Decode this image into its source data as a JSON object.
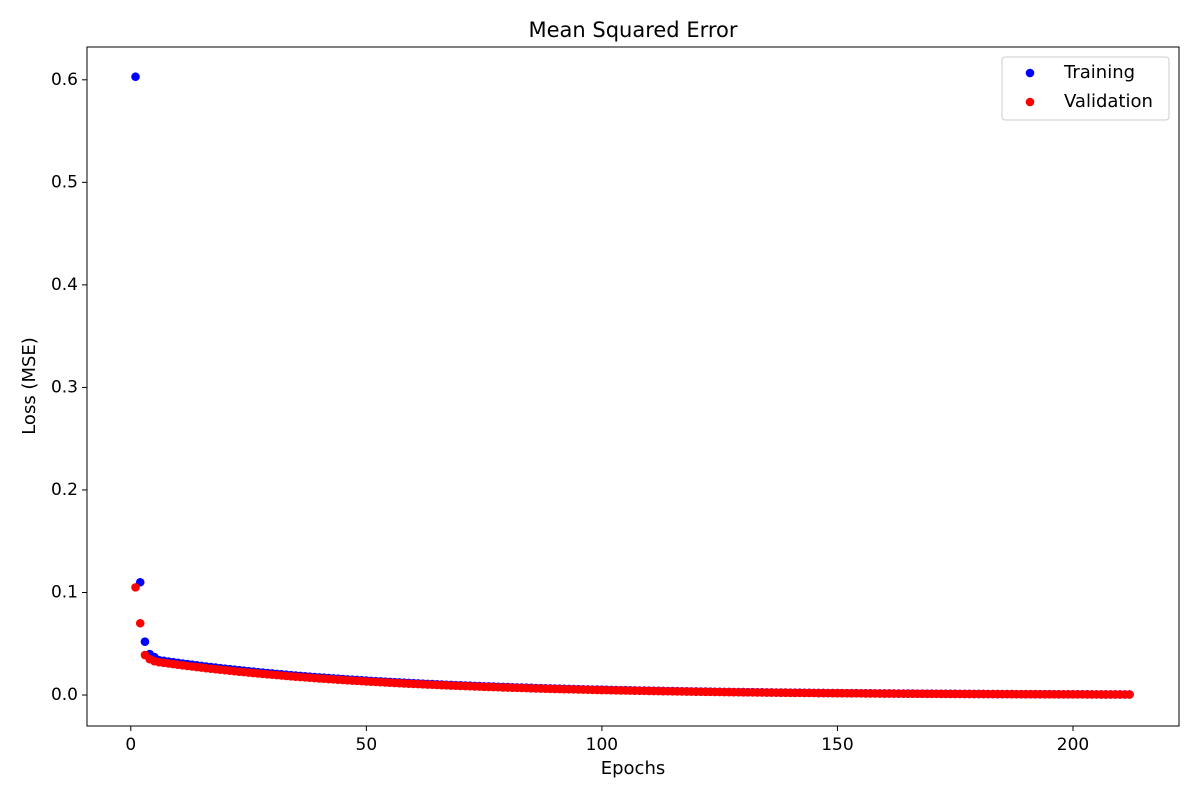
{
  "chart_data": {
    "type": "scatter",
    "title": "Mean Squared Error",
    "x_label": "Epochs",
    "y_label": "Loss (MSE)",
    "xlim": [
      -9.3,
      222.5
    ],
    "ylim": [
      -0.0302,
      0.632
    ],
    "xticks": [
      0,
      50,
      100,
      150,
      200
    ],
    "yticks": [
      {
        "value": 0,
        "label": "0.0"
      },
      0.1,
      0.2,
      0.3,
      0.4,
      0.5,
      0.6
    ],
    "legend": "upper right",
    "x": [
      1,
      2,
      3,
      4,
      5,
      6,
      7,
      8,
      9,
      10,
      11,
      12,
      13,
      14,
      15,
      16,
      17,
      18,
      19,
      20,
      21,
      22,
      23,
      24,
      25,
      26,
      27,
      28,
      29,
      30,
      31,
      32,
      33,
      34,
      35,
      36,
      37,
      38,
      39,
      40,
      41,
      42,
      43,
      44,
      45,
      46,
      47,
      48,
      49,
      50,
      51,
      52,
      53,
      54,
      55,
      56,
      57,
      58,
      59,
      60,
      61,
      62,
      63,
      64,
      65,
      66,
      67,
      68,
      69,
      70,
      71,
      72,
      73,
      74,
      75,
      76,
      77,
      78,
      79,
      80,
      81,
      82,
      83,
      84,
      85,
      86,
      87,
      88,
      89,
      90,
      91,
      92,
      93,
      94,
      95,
      96,
      97,
      98,
      99,
      100,
      101,
      102,
      103,
      104,
      105,
      106,
      107,
      108,
      109,
      110,
      111,
      112,
      113,
      114,
      115,
      116,
      117,
      118,
      119,
      120,
      121,
      122,
      123,
      124,
      125,
      126,
      127,
      128,
      129,
      130,
      131,
      132,
      133,
      134,
      135,
      136,
      137,
      138,
      139,
      140,
      141,
      142,
      143,
      144,
      145,
      146,
      147,
      148,
      149,
      150,
      151,
      152,
      153,
      154,
      155,
      156,
      157,
      158,
      159,
      160,
      161,
      162,
      163,
      164,
      165,
      166,
      167,
      168,
      169,
      170,
      171,
      172,
      173,
      174,
      175,
      176,
      177,
      178,
      179,
      180,
      181,
      182,
      183,
      184,
      185,
      186,
      187,
      188,
      189,
      190,
      191,
      192,
      193,
      194,
      195,
      196,
      197,
      198,
      199,
      200,
      201,
      202,
      203,
      204,
      205,
      206,
      207,
      208,
      209,
      210,
      211,
      212
    ],
    "series": [
      {
        "name": "Training",
        "color": "#0000ff",
        "values": [
          0.603,
          0.11,
          0.052,
          0.04,
          0.037,
          0.034,
          0.03333,
          0.03267,
          0.03202,
          0.03139,
          0.03076,
          0.03016,
          0.02956,
          0.02897,
          0.0284,
          0.02783,
          0.02729,
          0.02675,
          0.02622,
          0.0257,
          0.02519,
          0.02469,
          0.0242,
          0.02372,
          0.02325,
          0.02279,
          0.02234,
          0.0219,
          0.02146,
          0.02104,
          0.02062,
          0.02021,
          0.01981,
          0.01942,
          0.01904,
          0.01866,
          0.01829,
          0.01793,
          0.01757,
          0.01722,
          0.01688,
          0.01655,
          0.01622,
          0.0159,
          0.01558,
          0.01528,
          0.01497,
          0.01468,
          0.01439,
          0.0141,
          0.01382,
          0.01355,
          0.01328,
          0.01302,
          0.01276,
          0.01251,
          0.01226,
          0.01202,
          0.01178,
          0.01155,
          0.01132,
          0.01109,
          0.01087,
          0.01066,
          0.01045,
          0.01024,
          0.01004,
          0.00984,
          0.00964,
          0.00945,
          0.00927,
          0.00908,
          0.0089,
          0.00873,
          0.00855,
          0.00838,
          0.00822,
          0.00805,
          0.00789,
          0.00774,
          0.00758,
          0.00743,
          0.00729,
          0.00714,
          0.007,
          0.00686,
          0.00673,
          0.00659,
          0.00646,
          0.00633,
          0.00621,
          0.00609,
          0.00597,
          0.00585,
          0.00573,
          0.00562,
          0.00551,
          0.0054,
          0.00529,
          0.00519,
          0.00508,
          0.00498,
          0.00488,
          0.00479,
          0.00469,
          0.0046,
          0.00451,
          0.00442,
          0.00433,
          0.00425,
          0.00416,
          0.00408,
          0.004,
          0.00392,
          0.00384,
          0.00377,
          0.00369,
          0.00362,
          0.00355,
          0.00348,
          0.00341,
          0.00334,
          0.00328,
          0.00321,
          0.00315,
          0.00308,
          0.00302,
          0.00296,
          0.0029,
          0.00285,
          0.00279,
          0.00274,
          0.00268,
          0.00263,
          0.00258,
          0.00253,
          0.00248,
          0.00243,
          0.00238,
          0.00233,
          0.00228,
          0.00224,
          0.00219,
          0.00215,
          0.00211,
          0.00207,
          0.00203,
          0.00199,
          0.00195,
          0.00191,
          0.00187,
          0.00183,
          0.0018,
          0.00176,
          0.00173,
          0.00169,
          0.00166,
          0.00163,
          0.00159,
          0.00156,
          0.00153,
          0.0015,
          0.00147,
          0.00144,
          0.00141,
          0.00139,
          0.00136,
          0.00133,
          0.0013,
          0.00128,
          0.00125,
          0.00123,
          0.0012,
          0.00118,
          0.00116,
          0.00113,
          0.00111,
          0.00109,
          0.00107,
          0.00105,
          0.00103,
          0.00101,
          0.00099,
          0.00097,
          0.00095,
          0.00093,
          0.00091,
          0.00089,
          0.00088,
          0.00086,
          0.00084,
          0.00083,
          0.00081,
          0.00079,
          0.00078,
          0.00076,
          0.00075,
          0.00073,
          0.00072,
          0.0007,
          0.00069,
          0.00068,
          0.00066,
          0.00065,
          0.00064,
          0.00062,
          0.00061,
          0.0006,
          0.00059,
          0.00058,
          0.00056,
          0.00055
        ]
      },
      {
        "name": "Validation",
        "color": "#ff0000",
        "values": [
          0.105,
          0.07,
          0.039,
          0.035,
          0.033,
          0.03202,
          0.03139,
          0.03076,
          0.03016,
          0.02956,
          0.02897,
          0.0284,
          0.02783,
          0.02729,
          0.02675,
          0.02622,
          0.0257,
          0.02519,
          0.02469,
          0.0242,
          0.02372,
          0.02325,
          0.02279,
          0.02234,
          0.0219,
          0.02146,
          0.02104,
          0.02062,
          0.02021,
          0.01981,
          0.01942,
          0.01904,
          0.01866,
          0.01829,
          0.01793,
          0.01757,
          0.01722,
          0.01688,
          0.01655,
          0.01622,
          0.0159,
          0.01558,
          0.01528,
          0.01497,
          0.01468,
          0.01439,
          0.0141,
          0.01382,
          0.01355,
          0.01328,
          0.01302,
          0.01276,
          0.01251,
          0.01226,
          0.01202,
          0.01178,
          0.01155,
          0.01132,
          0.01109,
          0.01087,
          0.01066,
          0.01045,
          0.01024,
          0.01004,
          0.00984,
          0.00964,
          0.00945,
          0.00927,
          0.00908,
          0.0089,
          0.00873,
          0.00855,
          0.00838,
          0.00822,
          0.00805,
          0.00789,
          0.00774,
          0.00758,
          0.00743,
          0.00729,
          0.00714,
          0.007,
          0.00686,
          0.00673,
          0.00659,
          0.00646,
          0.00633,
          0.00621,
          0.00609,
          0.00597,
          0.00585,
          0.00573,
          0.00562,
          0.00551,
          0.0054,
          0.00529,
          0.00519,
          0.00508,
          0.00498,
          0.00488,
          0.00479,
          0.00469,
          0.0046,
          0.00451,
          0.00442,
          0.00433,
          0.00425,
          0.00416,
          0.00408,
          0.004,
          0.00392,
          0.00384,
          0.00377,
          0.00369,
          0.00362,
          0.00355,
          0.00348,
          0.00341,
          0.00334,
          0.00328,
          0.00321,
          0.00315,
          0.00308,
          0.00302,
          0.00296,
          0.0029,
          0.00285,
          0.00279,
          0.00274,
          0.00268,
          0.00263,
          0.00258,
          0.00253,
          0.00248,
          0.00243,
          0.00238,
          0.00233,
          0.00228,
          0.00224,
          0.00219,
          0.00215,
          0.00211,
          0.00207,
          0.00203,
          0.00199,
          0.00195,
          0.00191,
          0.00187,
          0.00183,
          0.0018,
          0.00176,
          0.00173,
          0.00169,
          0.00166,
          0.00163,
          0.00159,
          0.00156,
          0.00153,
          0.0015,
          0.00147,
          0.00144,
          0.00141,
          0.00139,
          0.00136,
          0.00133,
          0.0013,
          0.00128,
          0.00125,
          0.00123,
          0.0012,
          0.00118,
          0.00116,
          0.00113,
          0.00111,
          0.00109,
          0.00107,
          0.00105,
          0.00103,
          0.00101,
          0.00099,
          0.00097,
          0.00095,
          0.00093,
          0.00091,
          0.00089,
          0.00088,
          0.00086,
          0.00084,
          0.00083,
          0.00081,
          0.00079,
          0.00078,
          0.00076,
          0.00075,
          0.00073,
          0.00072,
          0.0007,
          0.00069,
          0.00068,
          0.00066,
          0.00065,
          0.00064,
          0.00062,
          0.00061,
          0.0006,
          0.00059,
          0.00058,
          0.00056,
          0.00055,
          0.00054,
          0.00053,
          0.00052
        ]
      }
    ]
  }
}
